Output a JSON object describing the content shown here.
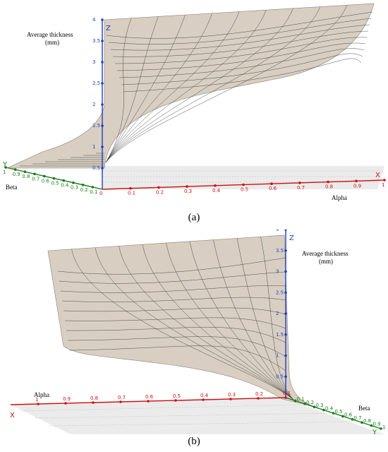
{
  "chart_data": [
    {
      "type": "surface3d",
      "panel_label": "a",
      "z_axis_label": [
        "Average thickness",
        "(mm)"
      ],
      "x_axis_label": "Alpha",
      "y_axis_label": "Beta",
      "x_axis_letter": "X",
      "y_axis_letter": "Y",
      "z_axis_letter": "Z",
      "x_ticks": [
        "0.1",
        "0.2",
        "0.3",
        "0.4",
        "0.5",
        "0.6",
        "0.7",
        "0.8",
        "0.9",
        "1"
      ],
      "y_ticks": [
        "0.1",
        "0.2",
        "0.3",
        "0.4",
        "0.5",
        "0.6",
        "0.7",
        "0.8",
        "0.9",
        "1"
      ],
      "z_ticks": [
        "0.5",
        "1",
        "1.5",
        "2",
        "2.5",
        "3",
        "3.5",
        "4"
      ],
      "origin_label": "0",
      "xlim": [
        0,
        1
      ],
      "ylim": [
        0,
        1
      ],
      "zlim": [
        0,
        4
      ],
      "colors": {
        "surface": "#d8cfc2",
        "x_axis": "#cc1111",
        "y_axis": "#1a7a1a",
        "z_axis": "#1f3fbf",
        "mesh": "#3a3a3a"
      }
    },
    {
      "type": "surface3d",
      "panel_label": "b",
      "z_axis_label": [
        "Average thickness",
        "(mm)"
      ],
      "x_axis_label": "Alpha",
      "y_axis_label": "Beta",
      "x_axis_letter": "X",
      "y_axis_letter": "Y",
      "z_axis_letter": "Z",
      "x_ticks": [
        "1",
        "0.9",
        "0.8",
        "0.7",
        "0.6",
        "0.5",
        "0.4",
        "0.3",
        "0.2",
        "0.1"
      ],
      "y_ticks": [
        "0.1",
        "0.2",
        "0.3",
        "0.4",
        "0.5",
        "0.6",
        "0.7",
        "0.8",
        "0.9",
        "1"
      ],
      "z_ticks": [
        "0.5",
        "1",
        "1.5",
        "2",
        "2.5",
        "3",
        "3.5",
        "4"
      ],
      "xlim": [
        0,
        1
      ],
      "ylim": [
        0,
        1
      ],
      "zlim": [
        0,
        4
      ],
      "colors": {
        "surface": "#d8cfc2",
        "x_axis": "#cc1111",
        "y_axis": "#1a7a1a",
        "z_axis": "#1f3fbf",
        "mesh": "#3a3a3a"
      }
    }
  ],
  "captions": {
    "a": "(a)",
    "b": "(b)"
  }
}
